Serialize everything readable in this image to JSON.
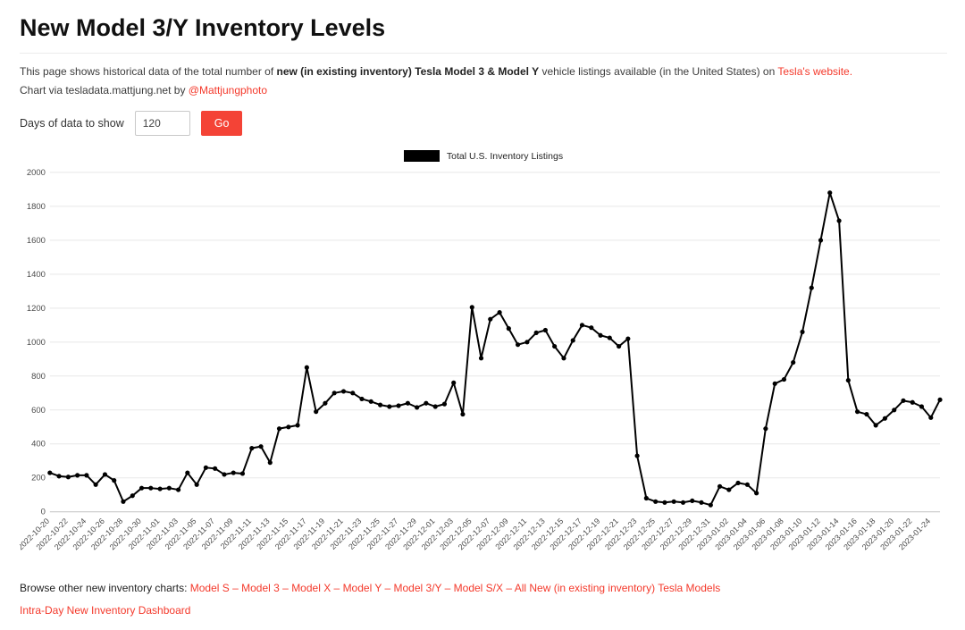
{
  "header": {
    "title": "New Model 3/Y Inventory Levels"
  },
  "intro": {
    "line1": [
      {
        "text": "This page shows historical data of the total number of ",
        "bold": false,
        "link": false
      },
      {
        "text": "new (in existing inventory) Tesla Model 3 & Model Y",
        "bold": true,
        "link": false
      },
      {
        "text": " vehicle listings available (in the United States) on ",
        "bold": false,
        "link": false
      },
      {
        "text": "Tesla's website.",
        "bold": false,
        "link": true
      }
    ],
    "line2": [
      {
        "text": "Chart via tesladata.mattjung.net by ",
        "bold": false,
        "link": false
      },
      {
        "text": "@Mattjungphoto",
        "bold": false,
        "link": true
      }
    ]
  },
  "controls": {
    "days_label": "Days of data to show",
    "days_value": "120",
    "go_label": "Go"
  },
  "chart_data": {
    "type": "line",
    "title": "",
    "legend_position": "top-center",
    "grid": "horizontal",
    "ylim": [
      0,
      2000
    ],
    "yticks": [
      0,
      200,
      400,
      600,
      800,
      1000,
      1200,
      1400,
      1600,
      1800,
      2000
    ],
    "x_tick_interval": 2,
    "x": [
      "2022-10-20",
      "2022-10-21",
      "2022-10-22",
      "2022-10-23",
      "2022-10-24",
      "2022-10-25",
      "2022-10-26",
      "2022-10-27",
      "2022-10-28",
      "2022-10-29",
      "2022-10-30",
      "2022-10-31",
      "2022-11-01",
      "2022-11-02",
      "2022-11-03",
      "2022-11-04",
      "2022-11-05",
      "2022-11-06",
      "2022-11-07",
      "2022-11-08",
      "2022-11-09",
      "2022-11-10",
      "2022-11-11",
      "2022-11-12",
      "2022-11-13",
      "2022-11-14",
      "2022-11-15",
      "2022-11-16",
      "2022-11-17",
      "2022-11-18",
      "2022-11-19",
      "2022-11-20",
      "2022-11-21",
      "2022-11-22",
      "2022-11-23",
      "2022-11-24",
      "2022-11-25",
      "2022-11-26",
      "2022-11-27",
      "2022-11-28",
      "2022-11-29",
      "2022-11-30",
      "2022-12-01",
      "2022-12-02",
      "2022-12-03",
      "2022-12-04",
      "2022-12-05",
      "2022-12-06",
      "2022-12-07",
      "2022-12-08",
      "2022-12-09",
      "2022-12-10",
      "2022-12-11",
      "2022-12-12",
      "2022-12-13",
      "2022-12-14",
      "2022-12-15",
      "2022-12-16",
      "2022-12-17",
      "2022-12-18",
      "2022-12-19",
      "2022-12-20",
      "2022-12-21",
      "2022-12-22",
      "2022-12-23",
      "2022-12-24",
      "2022-12-25",
      "2022-12-26",
      "2022-12-27",
      "2022-12-28",
      "2022-12-29",
      "2022-12-30",
      "2022-12-31",
      "2023-01-01",
      "2023-01-02",
      "2023-01-03",
      "2023-01-04",
      "2023-01-05",
      "2023-01-06",
      "2023-01-07",
      "2023-01-08",
      "2023-01-09",
      "2023-01-10",
      "2023-01-11",
      "2023-01-12",
      "2023-01-13",
      "2023-01-14",
      "2023-01-15",
      "2023-01-16",
      "2023-01-17",
      "2023-01-18",
      "2023-01-19",
      "2023-01-20",
      "2023-01-21",
      "2023-01-22",
      "2023-01-23",
      "2023-01-24",
      "2023-01-25"
    ],
    "series": [
      {
        "name": "Total U.S. Inventory Listings",
        "color": "#000000",
        "values": [
          230,
          210,
          205,
          215,
          215,
          160,
          220,
          185,
          60,
          95,
          140,
          140,
          135,
          140,
          130,
          230,
          160,
          260,
          255,
          220,
          230,
          225,
          375,
          385,
          290,
          490,
          500,
          510,
          850,
          590,
          640,
          700,
          710,
          700,
          665,
          650,
          630,
          620,
          625,
          640,
          615,
          640,
          620,
          635,
          760,
          575,
          1205,
          905,
          1135,
          1175,
          1080,
          985,
          1000,
          1055,
          1070,
          975,
          905,
          1010,
          1100,
          1085,
          1040,
          1025,
          975,
          1020,
          330,
          80,
          60,
          55,
          60,
          55,
          65,
          55,
          40,
          150,
          130,
          170,
          160,
          110,
          490,
          755,
          780,
          880,
          1060,
          1320,
          1600,
          1880,
          1715,
          775,
          590,
          575,
          510,
          550,
          600,
          655,
          645,
          620,
          555,
          660
        ]
      }
    ]
  },
  "footer": {
    "browse_prefix": "Browse other new inventory charts: ",
    "links": [
      "Model S",
      "Model 3",
      "Model X",
      "Model Y",
      "Model 3/Y",
      "Model S/X",
      "All New (in existing inventory) Tesla Models"
    ],
    "separator": " – ",
    "dashboard_link": "Intra-Day New Inventory Dashboard"
  },
  "colors": {
    "accent_red": "#f44336",
    "line": "#000000",
    "grid": "#e8e8e8"
  }
}
